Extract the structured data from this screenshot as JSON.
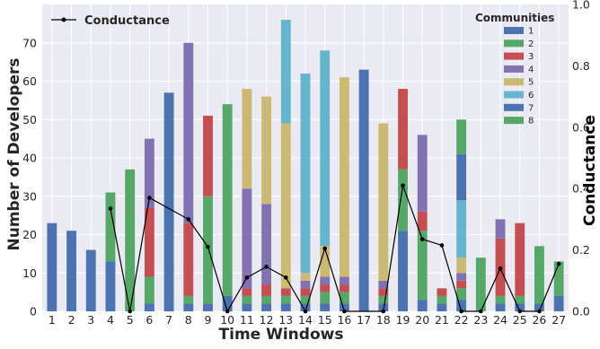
{
  "chart_data": {
    "type": "bar",
    "stacked": true,
    "xlabel": "Time Windows",
    "ylabel": "Number of Developers",
    "y2label": "Conductance",
    "categories": [
      "1",
      "2",
      "3",
      "4",
      "5",
      "6",
      "7",
      "8",
      "9",
      "10",
      "11",
      "12",
      "13",
      "14",
      "15",
      "16",
      "17",
      "18",
      "19",
      "20",
      "21",
      "22",
      "23",
      "24",
      "25",
      "26",
      "27"
    ],
    "ylim": [
      0,
      80
    ],
    "yticks": [
      0,
      10,
      20,
      30,
      40,
      50,
      60,
      70
    ],
    "y2lim": [
      0,
      1.0
    ],
    "y2ticks": [
      0.0,
      0.2,
      0.4,
      0.6,
      0.8,
      1.0
    ],
    "grid": true,
    "legend_title": "Communities",
    "legend_position": "top-right",
    "line_legend_label": "Conductance",
    "line_legend_position": "top-left",
    "series": [
      {
        "name": "1",
        "color": "#4c72b0",
        "values": [
          23,
          21,
          16,
          13,
          0,
          2,
          57,
          2,
          2,
          4,
          2,
          2,
          2,
          2,
          2,
          2,
          63,
          2,
          21,
          3,
          2,
          3,
          0,
          2,
          2,
          2,
          4
        ]
      },
      {
        "name": "2",
        "color": "#55a868",
        "values": [
          0,
          0,
          0,
          18,
          37,
          7,
          0,
          2,
          28,
          50,
          2,
          2,
          2,
          2,
          3,
          3,
          0,
          2,
          16,
          18,
          2,
          3,
          0,
          2,
          2,
          0,
          9
        ]
      },
      {
        "name": "3",
        "color": "#c44e52",
        "values": [
          0,
          0,
          0,
          0,
          0,
          18,
          0,
          19,
          21,
          0,
          2,
          3,
          2,
          2,
          2,
          2,
          0,
          2,
          21,
          5,
          2,
          2,
          0,
          15,
          19,
          0,
          0
        ]
      },
      {
        "name": "4",
        "color": "#8172b2",
        "values": [
          0,
          0,
          0,
          0,
          0,
          18,
          0,
          47,
          0,
          0,
          26,
          21,
          0,
          2,
          2,
          2,
          0,
          2,
          0,
          20,
          0,
          2,
          0,
          5,
          0,
          0,
          0
        ]
      },
      {
        "name": "5",
        "color": "#ccb974",
        "values": [
          0,
          0,
          0,
          0,
          0,
          0,
          0,
          0,
          0,
          0,
          26,
          28,
          43,
          2,
          8,
          52,
          0,
          41,
          0,
          0,
          0,
          4,
          0,
          0,
          0,
          0,
          0
        ]
      },
      {
        "name": "6",
        "color": "#64b5cd",
        "values": [
          0,
          0,
          0,
          0,
          0,
          0,
          0,
          0,
          0,
          0,
          0,
          0,
          27,
          52,
          51,
          0,
          0,
          0,
          0,
          0,
          0,
          15,
          0,
          0,
          0,
          0,
          0
        ]
      },
      {
        "name": "7",
        "color": "#4c72b0",
        "values": [
          0,
          0,
          0,
          0,
          0,
          0,
          0,
          0,
          0,
          0,
          0,
          0,
          0,
          0,
          0,
          0,
          0,
          0,
          0,
          0,
          0,
          12,
          0,
          0,
          0,
          0,
          0
        ]
      },
      {
        "name": "8",
        "color": "#55a868",
        "values": [
          0,
          0,
          0,
          0,
          0,
          0,
          0,
          0,
          0,
          0,
          0,
          0,
          0,
          0,
          0,
          0,
          0,
          0,
          0,
          0,
          0,
          9,
          14,
          0,
          0,
          15,
          0
        ]
      }
    ],
    "conductance": {
      "x": [
        4,
        5,
        6,
        8,
        9,
        10,
        11,
        12,
        13,
        14,
        15,
        16,
        18,
        19,
        20,
        21,
        22,
        23,
        24,
        25,
        26,
        27
      ],
      "y": [
        0.335,
        0.0,
        0.37,
        0.3,
        0.21,
        0.0,
        0.11,
        0.145,
        0.11,
        0.0,
        0.205,
        0.0,
        0.0,
        0.41,
        0.235,
        0.215,
        0.0,
        0.0,
        0.14,
        0.0,
        0.0,
        0.155
      ]
    }
  }
}
